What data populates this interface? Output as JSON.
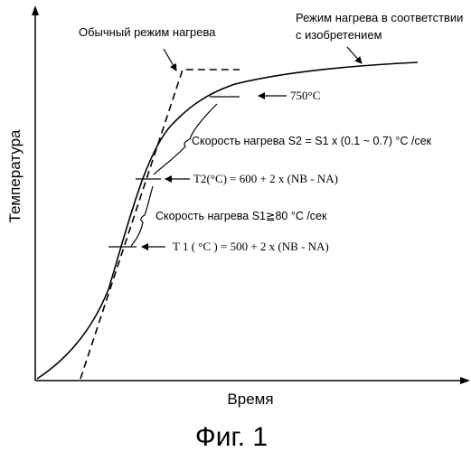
{
  "figure": {
    "caption": "Фиг. 1",
    "axes": {
      "x_label": "Время",
      "y_label": "Температура"
    },
    "labels": {
      "conventional": "Обычный режим нагрева",
      "invention_line1": "Режим нагрева в соответствии",
      "invention_line2": "с изобретением",
      "temp_750": "750°C",
      "rate_s2": "Скорость нагрева S2 = S1 x (0.1 ~ 0.7) °C /сек",
      "t2_formula": "T2(°C) = 600 + 2 x (NB - NA)",
      "rate_s1": "Скорость нагрева S1≧80 °C /сек",
      "t1_formula": "T 1 ( °C ) = 500 + 2 x (NB - NA)"
    }
  }
}
